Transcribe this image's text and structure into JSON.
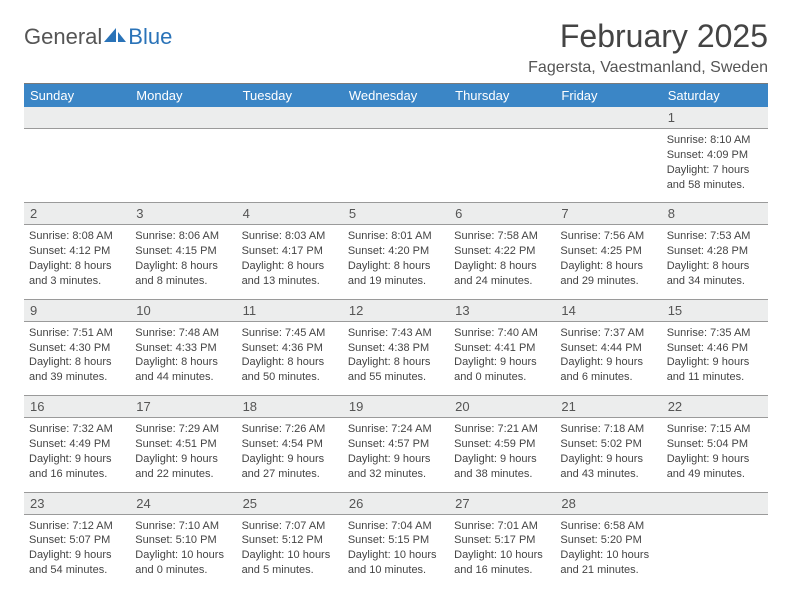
{
  "brand": {
    "part1": "General",
    "part2": "Blue"
  },
  "title": "February 2025",
  "subtitle": "Fagersta, Vaestmanland, Sweden",
  "colors": {
    "header_bg": "#3b86c6",
    "header_text": "#ffffff",
    "daynum_bg": "#eceded",
    "rule": "#9a9a9a",
    "brand_blue": "#2a73b8",
    "text": "#444444"
  },
  "day_headers": [
    "Sunday",
    "Monday",
    "Tuesday",
    "Wednesday",
    "Thursday",
    "Friday",
    "Saturday"
  ],
  "weeks": [
    [
      null,
      null,
      null,
      null,
      null,
      null,
      {
        "n": "1",
        "sunrise": "8:10 AM",
        "sunset": "4:09 PM",
        "daylight": "7 hours and 58 minutes."
      }
    ],
    [
      {
        "n": "2",
        "sunrise": "8:08 AM",
        "sunset": "4:12 PM",
        "daylight": "8 hours and 3 minutes."
      },
      {
        "n": "3",
        "sunrise": "8:06 AM",
        "sunset": "4:15 PM",
        "daylight": "8 hours and 8 minutes."
      },
      {
        "n": "4",
        "sunrise": "8:03 AM",
        "sunset": "4:17 PM",
        "daylight": "8 hours and 13 minutes."
      },
      {
        "n": "5",
        "sunrise": "8:01 AM",
        "sunset": "4:20 PM",
        "daylight": "8 hours and 19 minutes."
      },
      {
        "n": "6",
        "sunrise": "7:58 AM",
        "sunset": "4:22 PM",
        "daylight": "8 hours and 24 minutes."
      },
      {
        "n": "7",
        "sunrise": "7:56 AM",
        "sunset": "4:25 PM",
        "daylight": "8 hours and 29 minutes."
      },
      {
        "n": "8",
        "sunrise": "7:53 AM",
        "sunset": "4:28 PM",
        "daylight": "8 hours and 34 minutes."
      }
    ],
    [
      {
        "n": "9",
        "sunrise": "7:51 AM",
        "sunset": "4:30 PM",
        "daylight": "8 hours and 39 minutes."
      },
      {
        "n": "10",
        "sunrise": "7:48 AM",
        "sunset": "4:33 PM",
        "daylight": "8 hours and 44 minutes."
      },
      {
        "n": "11",
        "sunrise": "7:45 AM",
        "sunset": "4:36 PM",
        "daylight": "8 hours and 50 minutes."
      },
      {
        "n": "12",
        "sunrise": "7:43 AM",
        "sunset": "4:38 PM",
        "daylight": "8 hours and 55 minutes."
      },
      {
        "n": "13",
        "sunrise": "7:40 AM",
        "sunset": "4:41 PM",
        "daylight": "9 hours and 0 minutes."
      },
      {
        "n": "14",
        "sunrise": "7:37 AM",
        "sunset": "4:44 PM",
        "daylight": "9 hours and 6 minutes."
      },
      {
        "n": "15",
        "sunrise": "7:35 AM",
        "sunset": "4:46 PM",
        "daylight": "9 hours and 11 minutes."
      }
    ],
    [
      {
        "n": "16",
        "sunrise": "7:32 AM",
        "sunset": "4:49 PM",
        "daylight": "9 hours and 16 minutes."
      },
      {
        "n": "17",
        "sunrise": "7:29 AM",
        "sunset": "4:51 PM",
        "daylight": "9 hours and 22 minutes."
      },
      {
        "n": "18",
        "sunrise": "7:26 AM",
        "sunset": "4:54 PM",
        "daylight": "9 hours and 27 minutes."
      },
      {
        "n": "19",
        "sunrise": "7:24 AM",
        "sunset": "4:57 PM",
        "daylight": "9 hours and 32 minutes."
      },
      {
        "n": "20",
        "sunrise": "7:21 AM",
        "sunset": "4:59 PM",
        "daylight": "9 hours and 38 minutes."
      },
      {
        "n": "21",
        "sunrise": "7:18 AM",
        "sunset": "5:02 PM",
        "daylight": "9 hours and 43 minutes."
      },
      {
        "n": "22",
        "sunrise": "7:15 AM",
        "sunset": "5:04 PM",
        "daylight": "9 hours and 49 minutes."
      }
    ],
    [
      {
        "n": "23",
        "sunrise": "7:12 AM",
        "sunset": "5:07 PM",
        "daylight": "9 hours and 54 minutes."
      },
      {
        "n": "24",
        "sunrise": "7:10 AM",
        "sunset": "5:10 PM",
        "daylight": "10 hours and 0 minutes."
      },
      {
        "n": "25",
        "sunrise": "7:07 AM",
        "sunset": "5:12 PM",
        "daylight": "10 hours and 5 minutes."
      },
      {
        "n": "26",
        "sunrise": "7:04 AM",
        "sunset": "5:15 PM",
        "daylight": "10 hours and 10 minutes."
      },
      {
        "n": "27",
        "sunrise": "7:01 AM",
        "sunset": "5:17 PM",
        "daylight": "10 hours and 16 minutes."
      },
      {
        "n": "28",
        "sunrise": "6:58 AM",
        "sunset": "5:20 PM",
        "daylight": "10 hours and 21 minutes."
      },
      null
    ]
  ],
  "labels": {
    "sunrise": "Sunrise:",
    "sunset": "Sunset:",
    "daylight": "Daylight:"
  }
}
